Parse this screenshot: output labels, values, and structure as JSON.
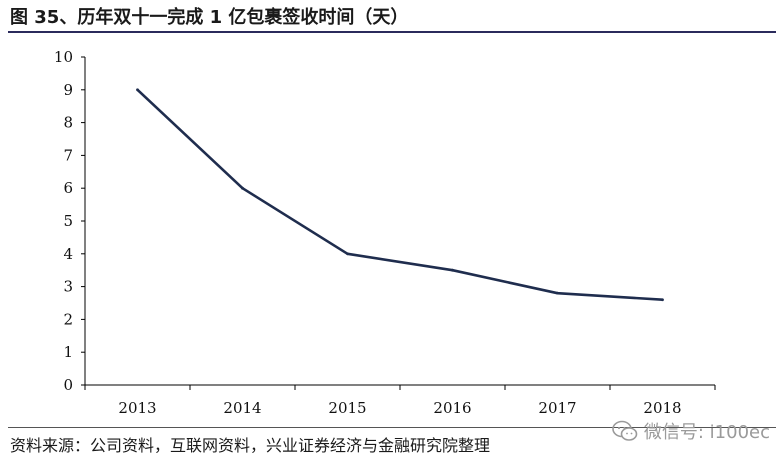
{
  "header": {
    "title": "图 35、历年双十一完成 1 亿包裹签收时间（天）"
  },
  "footer": {
    "source": "资料来源：公司资料，互联网资料，兴业证券经济与金融研究院整理",
    "watermark": "微信号: i100ec"
  },
  "colors": {
    "line": "#1f2d4e",
    "axis": "#000000",
    "title_rule": "#2b2b5c"
  },
  "chart_data": {
    "type": "line",
    "title": "图 35、历年双十一完成 1 亿包裹签收时间（天）",
    "xlabel": "",
    "ylabel": "",
    "categories": [
      "2013",
      "2014",
      "2015",
      "2016",
      "2017",
      "2018"
    ],
    "series": [
      {
        "values": [
          9,
          6,
          4,
          3.5,
          2.8,
          2.6
        ]
      }
    ],
    "ylim": [
      0,
      10
    ],
    "yticks": [
      "0",
      "1",
      "2",
      "3",
      "4",
      "5",
      "6",
      "7",
      "8",
      "9",
      "10"
    ],
    "grid": false,
    "legend": "none"
  }
}
